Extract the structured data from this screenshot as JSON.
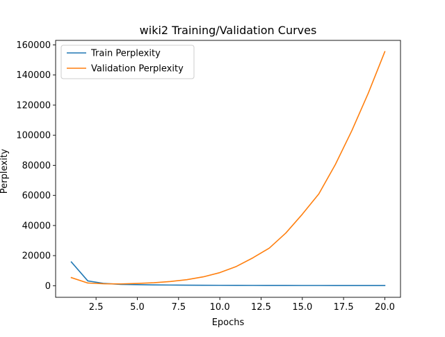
{
  "chart_data": {
    "type": "line",
    "title": "wiki2 Training/Validation Curves",
    "xlabel": "Epochs",
    "ylabel": "Perplexity",
    "xlim": [
      0.05,
      20.95
    ],
    "ylim": [
      -7700,
      163000
    ],
    "xticks": [
      2.5,
      5.0,
      7.5,
      10.0,
      12.5,
      15.0,
      17.5,
      20.0
    ],
    "xtick_labels": [
      "2.5",
      "5.0",
      "7.5",
      "10.0",
      "12.5",
      "15.0",
      "17.5",
      "20.0"
    ],
    "yticks": [
      0,
      20000,
      40000,
      60000,
      80000,
      100000,
      120000,
      140000,
      160000
    ],
    "ytick_labels": [
      "0",
      "20000",
      "40000",
      "60000",
      "80000",
      "100000",
      "120000",
      "140000",
      "160000"
    ],
    "grid": false,
    "legend_position": "top-left",
    "x": [
      1,
      2,
      3,
      4,
      5,
      6,
      7,
      8,
      9,
      10,
      11,
      12,
      13,
      14,
      15,
      16,
      17,
      18,
      19,
      20
    ],
    "series": [
      {
        "name": "Train Perplexity",
        "color": "#1f77b4",
        "values": [
          15800,
          3200,
          1500,
          900,
          700,
          550,
          450,
          380,
          320,
          280,
          250,
          220,
          200,
          180,
          170,
          160,
          150,
          140,
          135,
          130
        ]
      },
      {
        "name": "Validation Perplexity",
        "color": "#ff7f0e",
        "values": [
          5400,
          1800,
          1300,
          1200,
          1500,
          2000,
          2800,
          4000,
          5900,
          8700,
          12800,
          18500,
          25000,
          35000,
          47500,
          61000,
          80500,
          103000,
          128000,
          155500
        ]
      }
    ]
  }
}
